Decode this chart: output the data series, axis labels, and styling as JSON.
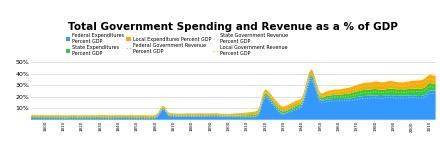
{
  "title": "Total Government Spending and Revenue as a % of GDP",
  "title_fontsize": 7.5,
  "ytick_labels": [
    "",
    "10%",
    "20%",
    "30%",
    "40%",
    "50%"
  ],
  "yticks": [
    0,
    10,
    20,
    30,
    40,
    50
  ],
  "ylim": [
    0,
    56
  ],
  "year_start": 1792,
  "year_end": 2013,
  "colors": {
    "federal_exp": "#3399FF",
    "state_exp": "#33CC33",
    "local_exp": "#FFAA00",
    "federal_rev": "#99CCFF",
    "state_rev": "#99EE99",
    "local_rev": "#FFDD66"
  },
  "background_color": "#ffffff",
  "grid_color": "#cccccc",
  "legend_labels": {
    "fed_exp": "Federal Expenditures\nPercent GDP",
    "state_exp": "State Expenditures\nPercent GDP",
    "local_exp": "Local Expenditures Percent GDP",
    "fed_rev": "Federal Government Revenue\nPercent GDP",
    "state_rev": "State Government Revenue\nPercent GDP",
    "local_rev": "Local Government Revenue\nPercent GDP"
  }
}
